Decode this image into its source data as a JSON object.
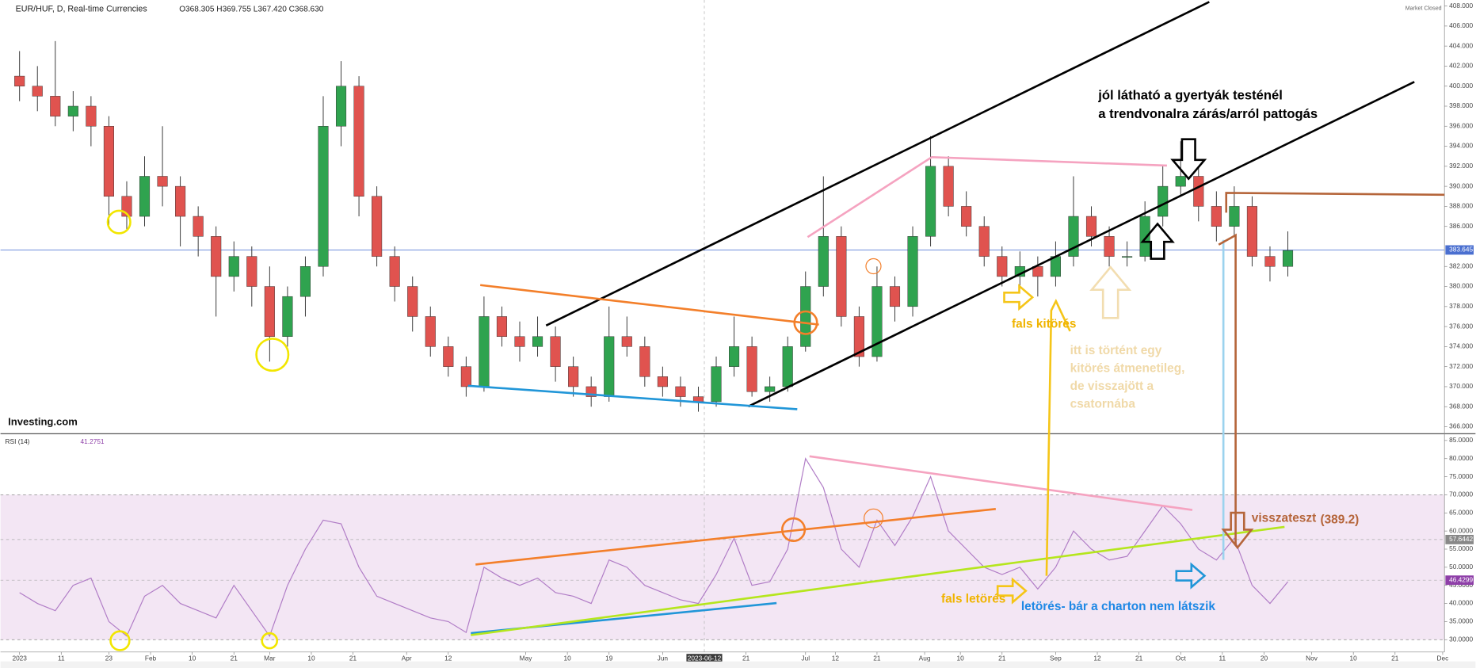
{
  "chart_data": {
    "type": "candlestick",
    "title": "EUR/HUF, D, Real-time Currencies",
    "ohlc_header": "O368.305 H369.755 L367.420 C368.630",
    "status": "Market Closed",
    "logo": "Investing.com",
    "up_color": "#2fa34f",
    "down_color": "#e0534f",
    "x": [
      0,
      3,
      6,
      9,
      12,
      15,
      18,
      21,
      24,
      27,
      30,
      33,
      36,
      39,
      42,
      45,
      48,
      51,
      54,
      57,
      60,
      63,
      66,
      69,
      72,
      75,
      78,
      81,
      84,
      87,
      90,
      93,
      96,
      99,
      102,
      105,
      108,
      111,
      114,
      117,
      120,
      123,
      126,
      129,
      132,
      135,
      138,
      141,
      144,
      147,
      150,
      153,
      156,
      159,
      162,
      165,
      168,
      171,
      174,
      177,
      180,
      183,
      186,
      189,
      192,
      195,
      198,
      201,
      204,
      207,
      210,
      213
    ],
    "ohlc": [
      [
        401,
        403.5,
        398.5,
        400
      ],
      [
        400,
        402,
        397.5,
        399
      ],
      [
        399,
        404.5,
        396,
        397
      ],
      [
        397,
        399.5,
        395.5,
        398
      ],
      [
        398,
        399,
        394,
        396
      ],
      [
        396,
        397,
        386,
        389
      ],
      [
        389,
        390.5,
        385.5,
        387
      ],
      [
        387,
        393,
        386,
        391
      ],
      [
        391,
        396,
        388,
        390
      ],
      [
        390,
        391,
        384,
        387
      ],
      [
        387,
        388,
        383,
        385
      ],
      [
        385,
        386,
        377,
        381
      ],
      [
        381,
        384.5,
        379.5,
        383
      ],
      [
        383,
        384,
        378,
        380
      ],
      [
        380,
        382,
        372.5,
        375
      ],
      [
        375,
        380,
        374,
        379
      ],
      [
        379,
        383,
        377,
        382
      ],
      [
        382,
        399,
        381,
        396
      ],
      [
        396,
        402.5,
        394,
        400
      ],
      [
        400,
        401,
        387,
        389
      ],
      [
        389,
        390,
        382,
        383
      ],
      [
        383,
        384,
        378.5,
        380
      ],
      [
        380,
        381,
        375.5,
        377
      ],
      [
        377,
        378,
        373,
        374
      ],
      [
        374,
        375,
        371,
        372
      ],
      [
        372,
        373,
        369,
        370
      ],
      [
        370,
        379,
        369.5,
        377
      ],
      [
        377,
        378,
        374,
        375
      ],
      [
        375,
        376.5,
        372.5,
        374
      ],
      [
        374,
        377,
        373,
        375
      ],
      [
        375,
        376,
        370.5,
        372
      ],
      [
        372,
        373,
        369,
        370
      ],
      [
        370,
        371,
        368,
        369
      ],
      [
        369,
        378,
        368.5,
        375
      ],
      [
        375,
        377,
        373,
        374
      ],
      [
        374,
        375,
        370,
        371
      ],
      [
        371,
        372,
        369,
        370
      ],
      [
        370,
        371,
        368,
        369
      ],
      [
        369,
        370,
        367.5,
        368.5
      ],
      [
        368.5,
        373,
        368,
        372
      ],
      [
        372,
        377,
        371,
        374
      ],
      [
        374,
        375,
        369,
        369.5
      ],
      [
        369.5,
        371,
        368.5,
        370
      ],
      [
        370,
        375,
        369.5,
        374
      ],
      [
        374,
        381.5,
        373.5,
        380
      ],
      [
        380,
        391,
        379,
        385
      ],
      [
        385,
        386,
        376,
        377
      ],
      [
        377,
        378,
        372,
        373
      ],
      [
        373,
        382,
        372.5,
        380
      ],
      [
        380,
        381,
        376.5,
        378
      ],
      [
        378,
        386,
        377,
        385
      ],
      [
        385,
        395,
        384,
        392
      ],
      [
        392,
        393,
        387,
        388
      ],
      [
        388,
        389.5,
        385,
        386
      ],
      [
        386,
        387,
        382,
        383
      ],
      [
        383,
        384,
        380,
        381
      ],
      [
        381,
        383.5,
        380,
        382
      ],
      [
        382,
        383,
        379,
        381
      ],
      [
        381,
        384.5,
        380,
        383
      ],
      [
        383,
        391,
        382,
        387
      ],
      [
        387,
        388,
        384,
        385
      ],
      [
        385,
        386,
        382,
        383
      ],
      [
        383,
        384.5,
        382,
        383
      ],
      [
        383,
        388.5,
        382.5,
        387
      ],
      [
        387,
        392,
        386,
        390
      ],
      [
        390,
        394.5,
        389,
        391
      ],
      [
        391,
        392,
        386.5,
        388
      ],
      [
        388,
        389.5,
        384.5,
        386
      ],
      [
        386,
        390,
        385,
        388
      ],
      [
        388,
        389,
        382,
        383
      ],
      [
        383,
        384,
        380.5,
        382
      ],
      [
        382,
        385.5,
        381,
        383.6
      ]
    ],
    "xlim": [
      -3.2,
      239.3
    ],
    "xticks": [
      {
        "value": 0,
        "label": "2023"
      },
      {
        "value": 7,
        "label": "11"
      },
      {
        "value": 15,
        "label": "23"
      },
      {
        "value": 22,
        "label": "Feb"
      },
      {
        "value": 29,
        "label": "10"
      },
      {
        "value": 36,
        "label": "21"
      },
      {
        "value": 42,
        "label": "Mar"
      },
      {
        "value": 49,
        "label": "10"
      },
      {
        "value": 56,
        "label": "21"
      },
      {
        "value": 65,
        "label": "Apr"
      },
      {
        "value": 72,
        "label": "12"
      },
      {
        "value": 85,
        "label": "May"
      },
      {
        "value": 92,
        "label": "10"
      },
      {
        "value": 99,
        "label": "19"
      },
      {
        "value": 108,
        "label": "Jun"
      },
      {
        "value": 122,
        "label": "21"
      },
      {
        "value": 132,
        "label": "Jul"
      },
      {
        "value": 137,
        "label": "12"
      },
      {
        "value": 144,
        "label": "21"
      },
      {
        "value": 152,
        "label": "Aug"
      },
      {
        "value": 158,
        "label": "10"
      },
      {
        "value": 165,
        "label": "21"
      },
      {
        "value": 174,
        "label": "Sep"
      },
      {
        "value": 181,
        "label": "12"
      },
      {
        "value": 188,
        "label": "21"
      },
      {
        "value": 195,
        "label": "Oct"
      },
      {
        "value": 202,
        "label": "11"
      },
      {
        "value": 209,
        "label": "20"
      },
      {
        "value": 217,
        "label": "Nov"
      },
      {
        "value": 224,
        "label": "10"
      },
      {
        "value": 231,
        "label": "21"
      },
      {
        "value": 239,
        "label": "Dec"
      }
    ],
    "crosshair": {
      "value": 115,
      "label": "2023-06-12"
    },
    "ylim": [
      365.3,
      408.6
    ],
    "yticks": [
      {
        "value": 366,
        "label": "366.000"
      },
      {
        "value": 368,
        "label": "368.000"
      },
      {
        "value": 370,
        "label": "370.000"
      },
      {
        "value": 372,
        "label": "372.000"
      },
      {
        "value": 374,
        "label": "374.000"
      },
      {
        "value": 376,
        "label": "376.000"
      },
      {
        "value": 378,
        "label": "378.000"
      },
      {
        "value": 380,
        "label": "380.000"
      },
      {
        "value": 382,
        "label": "382.000"
      },
      {
        "value": 386,
        "label": "386.000"
      },
      {
        "value": 388,
        "label": "388.000"
      },
      {
        "value": 390,
        "label": "390.000"
      },
      {
        "value": 392,
        "label": "392.000"
      },
      {
        "value": 394,
        "label": "394.000"
      },
      {
        "value": 396,
        "label": "396.000"
      },
      {
        "value": 398,
        "label": "398.000"
      },
      {
        "value": 400,
        "label": "400.000"
      },
      {
        "value": 402,
        "label": "402.000"
      },
      {
        "value": 404,
        "label": "404.000"
      },
      {
        "value": 406,
        "label": "406.000"
      },
      {
        "value": 408,
        "label": "408.000"
      }
    ],
    "last_price": 383.645,
    "rsi": {
      "name": "RSI (14)",
      "header_value": 41.2751,
      "color": "#b07cc6",
      "values": [
        43,
        40,
        38,
        45,
        47,
        35,
        31,
        42,
        45,
        40,
        38,
        36,
        45,
        38,
        31,
        45,
        55,
        63,
        62,
        50,
        42,
        40,
        38,
        36,
        35,
        32,
        50,
        47,
        45,
        47,
        43,
        42,
        40,
        52,
        50,
        45,
        43,
        41,
        40,
        48,
        58,
        45,
        46,
        55,
        80,
        72,
        55,
        50,
        63,
        56,
        64,
        75,
        60,
        55,
        50,
        48,
        50,
        44,
        50,
        60,
        55,
        52,
        53,
        60,
        67,
        62,
        55,
        52,
        58,
        45,
        40,
        46
      ],
      "ylim": [
        26.6,
        86.6
      ],
      "yticks": [
        {
          "value": 30,
          "label": "30.0000"
        },
        {
          "value": 35,
          "label": "35.0000"
        },
        {
          "value": 40,
          "label": "40.0000"
        },
        {
          "value": 45,
          "label": "45.0000"
        },
        {
          "value": 50,
          "label": "50.0000"
        },
        {
          "value": 55,
          "label": "55.0000"
        },
        {
          "value": 60,
          "label": "60.0000"
        },
        {
          "value": 65,
          "label": "65.0000"
        },
        {
          "value": 70,
          "label": "70.0000"
        },
        {
          "value": 75,
          "label": "75.0000"
        },
        {
          "value": 80,
          "label": "80.0000"
        },
        {
          "value": 85,
          "label": "85.0000"
        }
      ],
      "band": [
        30,
        70
      ],
      "levels": [
        57.6442,
        46.4299
      ],
      "level_colors": [
        "#888888",
        "#8e3fa8"
      ]
    },
    "annotations": {
      "note_1": "jól látható a gyertyák testénél",
      "note_2": "a trendvonalra zárás/arról pattogás",
      "fake_breakout": "fals kitörés",
      "temp_1": "itt is történt egy",
      "temp_2": "kitörés átmenetileg,",
      "temp_3": "de visszajött a",
      "temp_4": "csatornába",
      "retest": "visszateszt",
      "retest_level": "(389.2)",
      "fake_breakdown": "fals letörés",
      "breakdown": "letörés- bár a charton nem látszik"
    }
  }
}
